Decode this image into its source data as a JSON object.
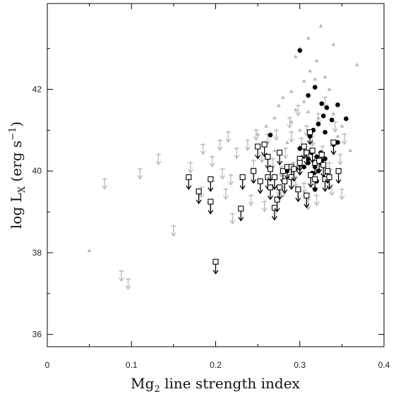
{
  "chart_data": {
    "type": "scatter",
    "xlabel": "Mg",
    "xlabel_sub": "2",
    "xlabel_rest": " line strength index",
    "ylabel_prefix": "log L",
    "ylabel_sub": "X",
    "ylabel_rest": " (erg s",
    "ylabel_sup": "−1",
    "ylabel_close": ")",
    "xlim": [
      0,
      0.4
    ],
    "ylim": [
      35.7,
      44.1
    ],
    "xticks": [
      "0",
      "0.1",
      "0.2",
      "0.3",
      "0.4"
    ],
    "yticks": [
      "36",
      "38",
      "40",
      "42"
    ],
    "colors": {
      "detected": "#000000",
      "gray": "#b8b8b8",
      "axis": "#000000"
    },
    "series": [
      {
        "marker": "filled-circle",
        "points": [
          [
            0.3,
            42.95
          ],
          [
            0.318,
            42.05
          ],
          [
            0.31,
            41.85
          ],
          [
            0.326,
            41.65
          ],
          [
            0.332,
            41.55
          ],
          [
            0.345,
            41.62
          ],
          [
            0.355,
            41.28
          ],
          [
            0.328,
            41.35
          ],
          [
            0.338,
            41.25
          ],
          [
            0.322,
            41.15
          ],
          [
            0.316,
            41.0
          ],
          [
            0.33,
            40.95
          ],
          [
            0.312,
            40.85
          ],
          [
            0.265,
            40.88
          ],
          [
            0.345,
            40.7
          ],
          [
            0.34,
            40.65
          ],
          [
            0.3,
            40.55
          ],
          [
            0.314,
            40.45
          ],
          [
            0.325,
            40.45
          ],
          [
            0.32,
            40.35
          ],
          [
            0.33,
            40.3
          ],
          [
            0.31,
            40.2
          ],
          [
            0.328,
            40.15
          ],
          [
            0.305,
            40.1
          ],
          [
            0.318,
            40.1
          ],
          [
            0.322,
            40.0
          ],
          [
            0.295,
            40.05
          ],
          [
            0.3,
            40.15
          ],
          [
            0.315,
            39.95
          ],
          [
            0.32,
            39.75
          ],
          [
            0.318,
            39.55
          ],
          [
            0.285,
            40.0
          ],
          [
            0.31,
            40.3
          ],
          [
            0.326,
            40.25
          ]
        ]
      },
      {
        "marker": "open-square-upper-limit",
        "points": [
          [
            0.168,
            39.85
          ],
          [
            0.18,
            39.5
          ],
          [
            0.194,
            39.8
          ],
          [
            0.194,
            39.25
          ],
          [
            0.2,
            37.78
          ],
          [
            0.23,
            39.08
          ],
          [
            0.232,
            39.85
          ],
          [
            0.245,
            40.0
          ],
          [
            0.25,
            40.6
          ],
          [
            0.253,
            39.75
          ],
          [
            0.258,
            40.65
          ],
          [
            0.262,
            39.85
          ],
          [
            0.262,
            40.35
          ],
          [
            0.265,
            40.05
          ],
          [
            0.265,
            39.6
          ],
          [
            0.27,
            39.85
          ],
          [
            0.27,
            39.1
          ],
          [
            0.273,
            39.3
          ],
          [
            0.276,
            40.45
          ],
          [
            0.276,
            39.6
          ],
          [
            0.28,
            40.0
          ],
          [
            0.282,
            39.75
          ],
          [
            0.285,
            40.1
          ],
          [
            0.29,
            40.1
          ],
          [
            0.29,
            39.85
          ],
          [
            0.293,
            40.05
          ],
          [
            0.298,
            39.55
          ],
          [
            0.3,
            40.3
          ],
          [
            0.305,
            40.6
          ],
          [
            0.308,
            40.45
          ],
          [
            0.308,
            39.4
          ],
          [
            0.312,
            40.95
          ],
          [
            0.313,
            39.9
          ],
          [
            0.318,
            40.2
          ],
          [
            0.318,
            39.8
          ],
          [
            0.323,
            40.25
          ],
          [
            0.326,
            40.4
          ],
          [
            0.328,
            40.15
          ],
          [
            0.33,
            39.8
          ],
          [
            0.333,
            40.0
          ],
          [
            0.335,
            39.85
          ],
          [
            0.34,
            40.7
          ],
          [
            0.346,
            40.0
          ],
          [
            0.3,
            40.2
          ],
          [
            0.315,
            40.5
          ]
        ]
      },
      {
        "marker": "gray-triangle",
        "points": [
          [
            0.05,
            38.05
          ],
          [
            0.31,
            43.25
          ],
          [
            0.325,
            43.55
          ],
          [
            0.34,
            43.1
          ],
          [
            0.368,
            42.6
          ],
          [
            0.295,
            42.8
          ],
          [
            0.312,
            42.45
          ],
          [
            0.33,
            42.3
          ],
          [
            0.32,
            42.7
          ],
          [
            0.335,
            42.0
          ],
          [
            0.305,
            42.2
          ],
          [
            0.29,
            41.95
          ],
          [
            0.28,
            41.8
          ],
          [
            0.275,
            41.6
          ],
          [
            0.295,
            41.5
          ],
          [
            0.31,
            41.45
          ],
          [
            0.322,
            41.3
          ],
          [
            0.34,
            41.4
          ],
          [
            0.35,
            41.1
          ],
          [
            0.27,
            41.3
          ],
          [
            0.26,
            41.1
          ],
          [
            0.25,
            40.9
          ],
          [
            0.3,
            41.0
          ],
          [
            0.315,
            40.7
          ],
          [
            0.345,
            40.85
          ],
          [
            0.36,
            40.5
          ],
          [
            0.285,
            40.7
          ],
          [
            0.27,
            40.5
          ],
          [
            0.29,
            41.2
          ],
          [
            0.305,
            41.7
          ],
          [
            0.318,
            42.25
          ],
          [
            0.3,
            43.0
          ]
        ]
      },
      {
        "marker": "gray-upper-limit",
        "points": [
          [
            0.068,
            39.8
          ],
          [
            0.11,
            40.05
          ],
          [
            0.132,
            40.4
          ],
          [
            0.15,
            38.65
          ],
          [
            0.088,
            37.55
          ],
          [
            0.096,
            37.35
          ],
          [
            0.17,
            40.2
          ],
          [
            0.185,
            40.65
          ],
          [
            0.183,
            39.6
          ],
          [
            0.196,
            40.35
          ],
          [
            0.205,
            40.75
          ],
          [
            0.208,
            40.05
          ],
          [
            0.212,
            39.55
          ],
          [
            0.215,
            40.95
          ],
          [
            0.218,
            39.9
          ],
          [
            0.225,
            40.55
          ],
          [
            0.22,
            38.95
          ],
          [
            0.238,
            40.75
          ],
          [
            0.242,
            39.4
          ],
          [
            0.245,
            40.25
          ],
          [
            0.248,
            41.0
          ],
          [
            0.255,
            40.45
          ],
          [
            0.258,
            39.25
          ],
          [
            0.262,
            40.9
          ],
          [
            0.268,
            40.3
          ],
          [
            0.272,
            41.0
          ],
          [
            0.278,
            40.1
          ],
          [
            0.28,
            39.6
          ],
          [
            0.283,
            40.55
          ],
          [
            0.288,
            41.3
          ],
          [
            0.292,
            40.2
          ],
          [
            0.295,
            39.85
          ],
          [
            0.298,
            41.6
          ],
          [
            0.302,
            40.8
          ],
          [
            0.305,
            39.7
          ],
          [
            0.308,
            41.1
          ],
          [
            0.315,
            40.85
          ],
          [
            0.32,
            39.4
          ],
          [
            0.322,
            41.4
          ],
          [
            0.327,
            40.6
          ],
          [
            0.33,
            41.8
          ],
          [
            0.335,
            40.2
          ],
          [
            0.338,
            39.65
          ],
          [
            0.342,
            41.2
          ],
          [
            0.348,
            40.4
          ],
          [
            0.35,
            39.55
          ],
          [
            0.353,
            40.9
          ],
          [
            0.29,
            40.95
          ],
          [
            0.3,
            40.35
          ],
          [
            0.275,
            39.65
          ],
          [
            0.31,
            39.3
          ]
        ]
      }
    ]
  }
}
